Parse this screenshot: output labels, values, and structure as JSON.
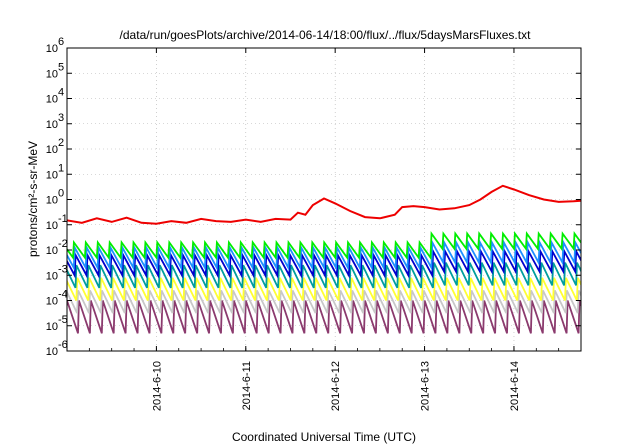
{
  "chart_data": {
    "type": "line",
    "title": "/data/run/goesPlots/archive/2014-06-14/18:00/flux/../flux/5daysMarsFluxes.txt",
    "xlabel": "Coordinated Universal Time (UTC)",
    "ylabel": "protons/cm²-s-sr-MeV",
    "y_scale": "log",
    "ylim": [
      1e-06,
      1000000.0
    ],
    "xlim": [
      "2014-06-09 00:00",
      "2014-06-14 18:00"
    ],
    "grid": true,
    "x_tick_labels": [
      "2014-6-10",
      "2014-6-11",
      "2014-6-12",
      "2014-6-13",
      "2014-6-14"
    ],
    "y_tick_labels": [
      {
        "value": 1e-06,
        "base": "10",
        "exp": "-6"
      },
      {
        "value": 1e-05,
        "base": "10",
        "exp": "-5"
      },
      {
        "value": 0.0001,
        "base": "10",
        "exp": "-4"
      },
      {
        "value": 0.001,
        "base": "10",
        "exp": "-3"
      },
      {
        "value": 0.01,
        "base": "10",
        "exp": "-2"
      },
      {
        "value": 0.1,
        "base": "10",
        "exp": "-1"
      },
      {
        "value": 1,
        "base": "10",
        "exp": "0"
      },
      {
        "value": 10,
        "base": "10",
        "exp": "1"
      },
      {
        "value": 100,
        "base": "10",
        "exp": "2"
      },
      {
        "value": 1000,
        "base": "10",
        "exp": "3"
      },
      {
        "value": 10000,
        "base": "10",
        "exp": "4"
      },
      {
        "value": 100000,
        "base": "10",
        "exp": "5"
      },
      {
        "value": 1000000,
        "base": "10",
        "exp": "6"
      }
    ],
    "sawtooth_period_hours": 3.2,
    "series": [
      {
        "color": "#8b3a6e",
        "log_lo": -5.3,
        "log_hi": -4.0,
        "shift_after_jun13": 0.0
      },
      {
        "color": "#c8c8c8",
        "log_lo": -4.5,
        "log_hi": -3.6,
        "shift_after_jun13": 0.0
      },
      {
        "color": "#ffff33",
        "log_lo": -4.0,
        "log_hi": -3.1,
        "shift_after_jun13": 0.0
      },
      {
        "color": "#009e9e",
        "log_lo": -3.5,
        "log_hi": -2.6,
        "shift_after_jun13": 0.1
      },
      {
        "color": "#0000cc",
        "log_lo": -3.0,
        "log_hi": -2.2,
        "shift_after_jun13": 0.15
      },
      {
        "color": "#1e90ff",
        "log_lo": -2.7,
        "log_hi": -1.9,
        "shift_after_jun13": 0.2
      },
      {
        "color": "#00ee00",
        "log_lo": -2.3,
        "log_hi": -1.7,
        "shift_after_jun13": 0.35
      }
    ],
    "red_series": {
      "color": "#ee0000",
      "points": [
        [
          "2014-06-09 00:00",
          0.15
        ],
        [
          "2014-06-09 04:00",
          0.12
        ],
        [
          "2014-06-09 08:00",
          0.18
        ],
        [
          "2014-06-09 12:00",
          0.13
        ],
        [
          "2014-06-09 16:00",
          0.19
        ],
        [
          "2014-06-09 20:00",
          0.12
        ],
        [
          "2014-06-10 00:00",
          0.11
        ],
        [
          "2014-06-10 04:00",
          0.14
        ],
        [
          "2014-06-10 08:00",
          0.12
        ],
        [
          "2014-06-10 12:00",
          0.17
        ],
        [
          "2014-06-10 16:00",
          0.14
        ],
        [
          "2014-06-10 20:00",
          0.13
        ],
        [
          "2014-06-11 00:00",
          0.16
        ],
        [
          "2014-06-11 04:00",
          0.13
        ],
        [
          "2014-06-11 08:00",
          0.17
        ],
        [
          "2014-06-11 12:00",
          0.16
        ],
        [
          "2014-06-11 14:00",
          0.3
        ],
        [
          "2014-06-11 16:00",
          0.25
        ],
        [
          "2014-06-11 18:00",
          0.6
        ],
        [
          "2014-06-11 21:00",
          1.1
        ],
        [
          "2014-06-12 00:00",
          0.7
        ],
        [
          "2014-06-12 04:00",
          0.35
        ],
        [
          "2014-06-12 08:00",
          0.2
        ],
        [
          "2014-06-12 12:00",
          0.18
        ],
        [
          "2014-06-12 16:00",
          0.25
        ],
        [
          "2014-06-12 18:00",
          0.5
        ],
        [
          "2014-06-12 21:00",
          0.55
        ],
        [
          "2014-06-13 00:00",
          0.5
        ],
        [
          "2014-06-13 04:00",
          0.4
        ],
        [
          "2014-06-13 08:00",
          0.45
        ],
        [
          "2014-06-13 12:00",
          0.6
        ],
        [
          "2014-06-13 15:00",
          1.0
        ],
        [
          "2014-06-13 18:00",
          2.0
        ],
        [
          "2014-06-13 21:00",
          3.5
        ],
        [
          "2014-06-14 00:00",
          2.5
        ],
        [
          "2014-06-14 04:00",
          1.5
        ],
        [
          "2014-06-14 08:00",
          1.0
        ],
        [
          "2014-06-14 12:00",
          0.8
        ],
        [
          "2014-06-14 16:00",
          0.85
        ],
        [
          "2014-06-14 18:00",
          0.9
        ]
      ]
    }
  }
}
